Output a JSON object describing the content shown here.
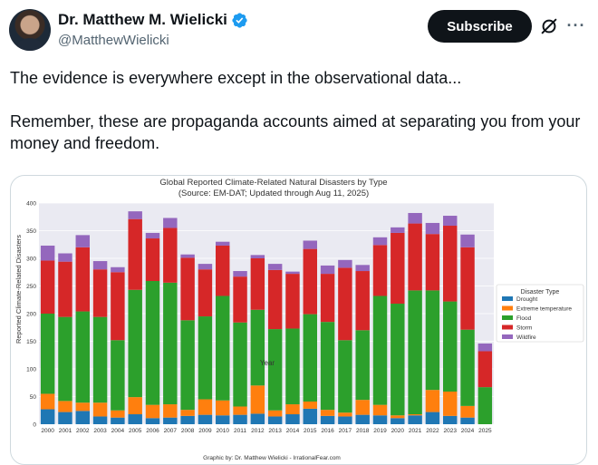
{
  "author": {
    "display_name": "Dr. Matthew M. Wielicki",
    "handle": "@MatthewWielicki",
    "verified": true,
    "avatar_icon": "avatar-photo"
  },
  "actions": {
    "subscribe_label": "Subscribe",
    "grok_icon": "slash-circle-icon",
    "more_icon": "more-horizontal-icon"
  },
  "post": {
    "line1": "The evidence is everywhere except in the observational data...",
    "line2": "Remember, these are propaganda accounts aimed at separating you from your money and freedom."
  },
  "chart_data": {
    "type": "bar",
    "stacked": true,
    "title": "Global Reported Climate-Related Natural Disasters by Type",
    "subtitle": "(Source: EM-DAT; Updated through Aug 11, 2025)",
    "xlabel": "Year",
    "ylabel": "Reported Climate-Related Disasters",
    "ylim": [
      0,
      400
    ],
    "yticks": [
      0,
      50,
      100,
      150,
      200,
      250,
      300,
      350,
      400
    ],
    "grid": true,
    "legend_title": "Disaster Type",
    "legend_position": "right",
    "footer": "Graphic by: Dr. Matthew Wielicki - IrrationalFear.com",
    "categories": [
      "2000",
      "2001",
      "2002",
      "2003",
      "2004",
      "2005",
      "2006",
      "2007",
      "2008",
      "2009",
      "2010",
      "2011",
      "2012",
      "2013",
      "2014",
      "2015",
      "2016",
      "2017",
      "2018",
      "2019",
      "2020",
      "2021",
      "2022",
      "2023",
      "2024",
      "2025"
    ],
    "series": [
      {
        "name": "Drought",
        "color": "#1f77b4",
        "values": [
          27,
          22,
          24,
          14,
          12,
          18,
          11,
          12,
          15,
          17,
          16,
          17,
          19,
          14,
          18,
          28,
          15,
          14,
          17,
          16,
          11,
          16,
          22,
          15,
          12,
          0
        ]
      },
      {
        "name": "Extreme temperature",
        "color": "#ff7f0e",
        "values": [
          28,
          20,
          15,
          25,
          13,
          31,
          24,
          24,
          11,
          28,
          27,
          15,
          51,
          11,
          18,
          13,
          11,
          7,
          27,
          19,
          5,
          2,
          40,
          44,
          21,
          0
        ]
      },
      {
        "name": "Flood",
        "color": "#2ca02c",
        "values": [
          145,
          152,
          165,
          155,
          127,
          194,
          224,
          220,
          162,
          150,
          189,
          152,
          137,
          147,
          137,
          158,
          159,
          131,
          126,
          197,
          202,
          224,
          180,
          163,
          138,
          67
        ]
      },
      {
        "name": "Storm",
        "color": "#d62728",
        "values": [
          96,
          100,
          116,
          86,
          123,
          128,
          77,
          99,
          113,
          85,
          91,
          83,
          93,
          107,
          99,
          118,
          87,
          131,
          107,
          92,
          128,
          121,
          102,
          137,
          149,
          65
        ]
      },
      {
        "name": "Wildfire",
        "color": "#9467bd",
        "values": [
          27,
          15,
          22,
          15,
          9,
          14,
          10,
          18,
          6,
          10,
          7,
          10,
          6,
          11,
          4,
          15,
          15,
          14,
          11,
          14,
          10,
          19,
          20,
          18,
          23,
          14
        ]
      }
    ]
  }
}
